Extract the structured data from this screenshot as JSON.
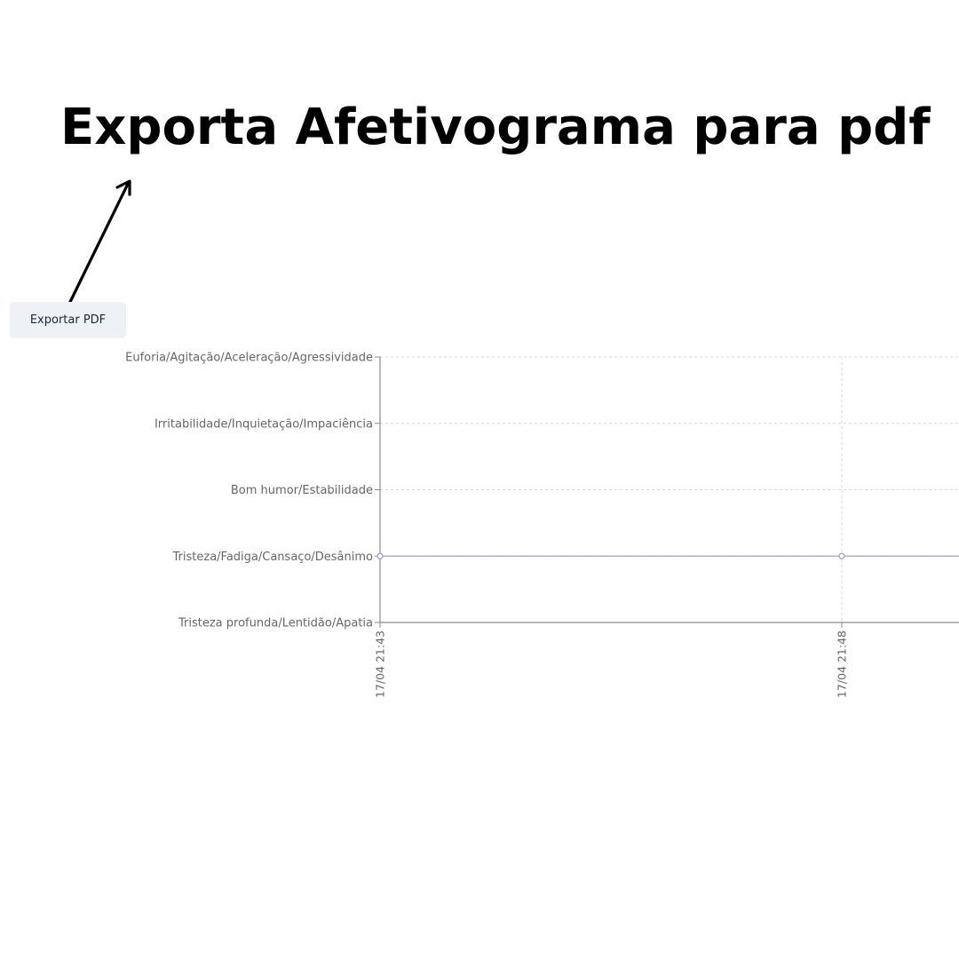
{
  "headline": "Exporta Afetivograma para pdf",
  "export_button": {
    "label": "Exportar PDF"
  },
  "annotation": {
    "arrow_icon": "arrow-up-right-icon"
  },
  "colors": {
    "line": "#a59fd6",
    "grid": "#d9d9d9",
    "axis": "#8c8c8c",
    "tick_text": "#666666",
    "button_bg": "#eef1f5"
  },
  "chart_data": {
    "type": "line",
    "categories": [
      "17/04 21:43",
      "17/04 21:48"
    ],
    "y_levels": [
      "Tristeza profunda/Lentidão/Apatia",
      "Tristeza/Fadiga/Cansaço/Desânimo",
      "Bom humor/Estabilidade",
      "Irritabilidade/Inquietação/Impaciência",
      "Euforia/Agitação/Aceleração/Agressividade"
    ],
    "series": [
      {
        "values": [
          "Tristeza/Fadiga/Cansaço/Desânimo",
          "Tristeza/Fadiga/Cansaço/Desânimo"
        ]
      }
    ],
    "grid": true,
    "grid_style": "dashed",
    "legend": "none",
    "xlabel": "",
    "ylabel": "",
    "title": ""
  }
}
